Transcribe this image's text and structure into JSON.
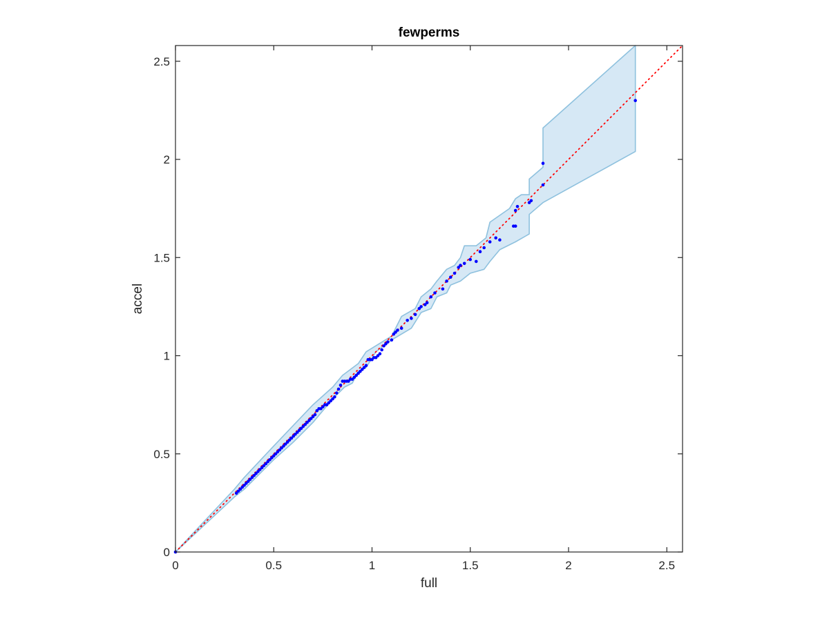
{
  "chart_data": {
    "type": "scatter",
    "title": "fewperms",
    "xlabel": "full",
    "ylabel": "accel",
    "xlim": [
      0,
      2.58
    ],
    "ylim": [
      0,
      2.58
    ],
    "xticks": [
      "0",
      "0.5",
      "1",
      "1.5",
      "2",
      "2.5"
    ],
    "yticks": [
      "0",
      "0.5",
      "1",
      "1.5",
      "2",
      "2.5"
    ],
    "grid": false,
    "colors": {
      "points": "#0000ff",
      "reference_line": "#ff0000",
      "band_fill": "#d6e8f5",
      "band_edge": "#8ec1de",
      "axes": "#262626"
    },
    "reference_line": {
      "style": "dotted",
      "from": [
        0,
        0
      ],
      "to": [
        2.58,
        2.58
      ]
    },
    "confidence_band": {
      "upper": [
        [
          0,
          0
        ],
        [
          0.3,
          0.32
        ],
        [
          0.35,
          0.38
        ],
        [
          0.5,
          0.54
        ],
        [
          0.7,
          0.75
        ],
        [
          0.8,
          0.84
        ],
        [
          0.85,
          0.9
        ],
        [
          0.93,
          0.96
        ],
        [
          0.97,
          1.02
        ],
        [
          1.1,
          1.1
        ],
        [
          1.15,
          1.2
        ],
        [
          1.22,
          1.24
        ],
        [
          1.25,
          1.3
        ],
        [
          1.3,
          1.34
        ],
        [
          1.33,
          1.38
        ],
        [
          1.38,
          1.44
        ],
        [
          1.42,
          1.46
        ],
        [
          1.45,
          1.5
        ],
        [
          1.47,
          1.56
        ],
        [
          1.53,
          1.56
        ],
        [
          1.58,
          1.6
        ],
        [
          1.6,
          1.68
        ],
        [
          1.7,
          1.75
        ],
        [
          1.73,
          1.8
        ],
        [
          1.76,
          1.82
        ],
        [
          1.8,
          1.82
        ],
        [
          1.8,
          1.9
        ],
        [
          1.87,
          1.96
        ],
        [
          1.87,
          2.16
        ],
        [
          2.34,
          2.58
        ]
      ],
      "lower": [
        [
          2.34,
          2.04
        ],
        [
          1.87,
          1.78
        ],
        [
          1.8,
          1.72
        ],
        [
          1.8,
          1.62
        ],
        [
          1.73,
          1.58
        ],
        [
          1.65,
          1.54
        ],
        [
          1.6,
          1.48
        ],
        [
          1.57,
          1.44
        ],
        [
          1.5,
          1.42
        ],
        [
          1.45,
          1.38
        ],
        [
          1.4,
          1.36
        ],
        [
          1.38,
          1.32
        ],
        [
          1.33,
          1.3
        ],
        [
          1.3,
          1.24
        ],
        [
          1.25,
          1.22
        ],
        [
          1.2,
          1.14
        ],
        [
          1.1,
          1.08
        ],
        [
          1.02,
          1.02
        ],
        [
          0.97,
          0.94
        ],
        [
          0.93,
          0.92
        ],
        [
          0.9,
          0.86
        ],
        [
          0.86,
          0.84
        ],
        [
          0.8,
          0.78
        ],
        [
          0.7,
          0.66
        ],
        [
          0.6,
          0.56
        ],
        [
          0.5,
          0.47
        ],
        [
          0.35,
          0.32
        ],
        [
          0.3,
          0.28
        ],
        [
          0,
          0
        ]
      ]
    },
    "points": [
      [
        0,
        0
      ],
      [
        0.31,
        0.3
      ],
      [
        0.32,
        0.31
      ],
      [
        0.33,
        0.32
      ],
      [
        0.34,
        0.33
      ],
      [
        0.35,
        0.34
      ],
      [
        0.36,
        0.35
      ],
      [
        0.37,
        0.36
      ],
      [
        0.38,
        0.37
      ],
      [
        0.39,
        0.38
      ],
      [
        0.4,
        0.39
      ],
      [
        0.41,
        0.4
      ],
      [
        0.42,
        0.41
      ],
      [
        0.43,
        0.42
      ],
      [
        0.44,
        0.43
      ],
      [
        0.45,
        0.44
      ],
      [
        0.46,
        0.45
      ],
      [
        0.47,
        0.46
      ],
      [
        0.48,
        0.47
      ],
      [
        0.49,
        0.48
      ],
      [
        0.5,
        0.49
      ],
      [
        0.51,
        0.5
      ],
      [
        0.52,
        0.51
      ],
      [
        0.53,
        0.52
      ],
      [
        0.54,
        0.53
      ],
      [
        0.55,
        0.54
      ],
      [
        0.56,
        0.55
      ],
      [
        0.57,
        0.56
      ],
      [
        0.58,
        0.57
      ],
      [
        0.59,
        0.58
      ],
      [
        0.6,
        0.59
      ],
      [
        0.61,
        0.6
      ],
      [
        0.62,
        0.61
      ],
      [
        0.63,
        0.62
      ],
      [
        0.64,
        0.63
      ],
      [
        0.65,
        0.64
      ],
      [
        0.66,
        0.65
      ],
      [
        0.67,
        0.66
      ],
      [
        0.68,
        0.67
      ],
      [
        0.69,
        0.68
      ],
      [
        0.7,
        0.69
      ],
      [
        0.71,
        0.7
      ],
      [
        0.72,
        0.72
      ],
      [
        0.73,
        0.73
      ],
      [
        0.74,
        0.73
      ],
      [
        0.75,
        0.74
      ],
      [
        0.76,
        0.75
      ],
      [
        0.77,
        0.75
      ],
      [
        0.78,
        0.76
      ],
      [
        0.79,
        0.77
      ],
      [
        0.8,
        0.78
      ],
      [
        0.81,
        0.79
      ],
      [
        0.82,
        0.81
      ],
      [
        0.83,
        0.83
      ],
      [
        0.84,
        0.85
      ],
      [
        0.85,
        0.87
      ],
      [
        0.86,
        0.87
      ],
      [
        0.87,
        0.87
      ],
      [
        0.88,
        0.87
      ],
      [
        0.89,
        0.88
      ],
      [
        0.9,
        0.88
      ],
      [
        0.91,
        0.89
      ],
      [
        0.92,
        0.9
      ],
      [
        0.93,
        0.91
      ],
      [
        0.94,
        0.92
      ],
      [
        0.95,
        0.93
      ],
      [
        0.96,
        0.94
      ],
      [
        0.97,
        0.95
      ],
      [
        0.98,
        0.98
      ],
      [
        0.99,
        0.98
      ],
      [
        1.0,
        0.98
      ],
      [
        1.01,
        0.99
      ],
      [
        1.02,
        0.99
      ],
      [
        1.03,
        1.0
      ],
      [
        1.04,
        1.01
      ],
      [
        1.05,
        1.03
      ],
      [
        1.06,
        1.05
      ],
      [
        1.07,
        1.06
      ],
      [
        1.08,
        1.07
      ],
      [
        1.1,
        1.08
      ],
      [
        1.11,
        1.11
      ],
      [
        1.12,
        1.12
      ],
      [
        1.13,
        1.13
      ],
      [
        1.15,
        1.14
      ],
      [
        1.18,
        1.18
      ],
      [
        1.2,
        1.19
      ],
      [
        1.22,
        1.21
      ],
      [
        1.24,
        1.24
      ],
      [
        1.25,
        1.25
      ],
      [
        1.27,
        1.26
      ],
      [
        1.28,
        1.27
      ],
      [
        1.3,
        1.3
      ],
      [
        1.32,
        1.32
      ],
      [
        1.36,
        1.34
      ],
      [
        1.38,
        1.38
      ],
      [
        1.4,
        1.4
      ],
      [
        1.42,
        1.42
      ],
      [
        1.44,
        1.45
      ],
      [
        1.45,
        1.46
      ],
      [
        1.47,
        1.47
      ],
      [
        1.5,
        1.49
      ],
      [
        1.53,
        1.48
      ],
      [
        1.55,
        1.53
      ],
      [
        1.57,
        1.55
      ],
      [
        1.6,
        1.58
      ],
      [
        1.63,
        1.6
      ],
      [
        1.65,
        1.59
      ],
      [
        1.72,
        1.66
      ],
      [
        1.73,
        1.66
      ],
      [
        1.73,
        1.74
      ],
      [
        1.74,
        1.76
      ],
      [
        1.8,
        1.78
      ],
      [
        1.81,
        1.79
      ],
      [
        1.87,
        1.87
      ],
      [
        1.87,
        1.98
      ],
      [
        2.34,
        2.3
      ]
    ]
  }
}
